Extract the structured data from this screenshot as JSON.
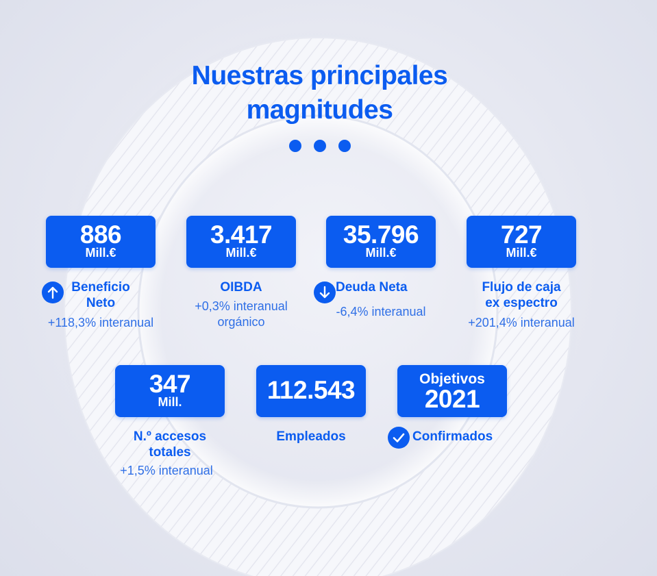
{
  "title": {
    "line1": "Nuestras principales",
    "line2": "magnitudes"
  },
  "metrics": [
    {
      "value": "886",
      "unit": "Mill.€",
      "label_line1": "Beneficio",
      "label_line2": "Neto",
      "sub_line1": "+118,3% interanual",
      "icon": "arrow-up-icon"
    },
    {
      "value": "3.417",
      "unit": "Mill.€",
      "label_line1": "OIBDA",
      "sub_line1": "+0,3% interanual",
      "sub_line2": "orgánico"
    },
    {
      "value": "35.796",
      "unit": "Mill.€",
      "label_line1": "Deuda Neta",
      "sub_line1": "-6,4% interanual",
      "icon": "arrow-down-icon"
    },
    {
      "value": "727",
      "unit": "Mill.€",
      "label_line1": "Flujo de caja",
      "label_line2": "ex espectro",
      "sub_line1": "+201,4% interanual"
    },
    {
      "value": "347",
      "unit": "Mill.",
      "label_line1": "N.º accesos",
      "label_line2": "totales",
      "sub_line1": "+1,5% interanual"
    },
    {
      "value": "112.543",
      "label_line1": "Empleados"
    },
    {
      "top": "Objetivos",
      "value": "2021",
      "label_line1": "Confirmados",
      "icon": "check-icon"
    }
  ],
  "colors": {
    "accent": "#0b5cf0",
    "background": "#e4e6f0"
  }
}
